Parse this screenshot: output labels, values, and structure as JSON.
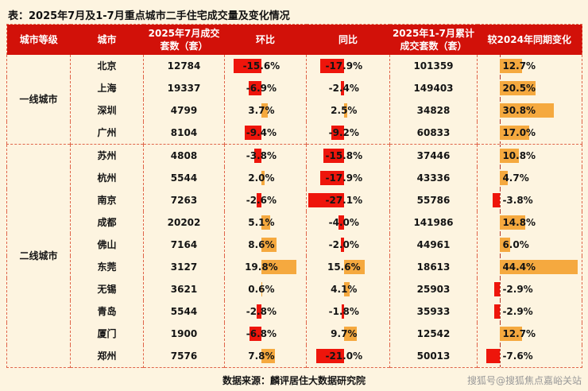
{
  "colors": {
    "page_bg": "#fdf4e0",
    "header_bg": "#d21109",
    "header_text": "#ffffff",
    "bar_negative": "#ee150b",
    "bar_positive": "#f5a93f",
    "grid": "#e0654a",
    "text": "#141414",
    "watermark": "#999999"
  },
  "chart_data": {
    "type": "table",
    "title": "表：2025年7月及1-7月重点城市二手住宅成交量及变化情况",
    "columns": [
      "城市等级",
      "城市",
      "2025年7月成交套数（套）",
      "环比",
      "同比",
      "2025年1-7月累计成交套数（套）",
      "较2024年同期变化"
    ],
    "tiers": [
      {
        "name": "一线城市",
        "rows": [
          {
            "city": "北京",
            "jul": "12784",
            "mom": "-15.6%",
            "yoy": "-17.9%",
            "cum": "101359",
            "chg": "12.7%"
          },
          {
            "city": "上海",
            "jul": "19337",
            "mom": "-6.9%",
            "yoy": "-2.4%",
            "cum": "149403",
            "chg": "20.5%"
          },
          {
            "city": "深圳",
            "jul": "4799",
            "mom": "3.7%",
            "yoy": "2.5%",
            "cum": "34828",
            "chg": "30.8%"
          },
          {
            "city": "广州",
            "jul": "8104",
            "mom": "-9.4%",
            "yoy": "-9.2%",
            "cum": "60833",
            "chg": "17.0%"
          }
        ]
      },
      {
        "name": "二线城市",
        "rows": [
          {
            "city": "苏州",
            "jul": "4808",
            "mom": "-3.8%",
            "yoy": "-15.8%",
            "cum": "37446",
            "chg": "10.8%"
          },
          {
            "city": "杭州",
            "jul": "5544",
            "mom": "2.0%",
            "yoy": "-17.9%",
            "cum": "43336",
            "chg": "4.7%"
          },
          {
            "city": "南京",
            "jul": "7263",
            "mom": "-2.6%",
            "yoy": "-27.1%",
            "cum": "55786",
            "chg": "-3.8%"
          },
          {
            "city": "成都",
            "jul": "20202",
            "mom": "5.1%",
            "yoy": "-4.0%",
            "cum": "141986",
            "chg": "14.8%"
          },
          {
            "city": "佛山",
            "jul": "7164",
            "mom": "8.6%",
            "yoy": "-2.0%",
            "cum": "44961",
            "chg": "6.0%"
          },
          {
            "city": "东莞",
            "jul": "3127",
            "mom": "19.8%",
            "yoy": "15.6%",
            "cum": "18613",
            "chg": "44.4%"
          },
          {
            "city": "无锡",
            "jul": "3621",
            "mom": "0.6%",
            "yoy": "4.1%",
            "cum": "25903",
            "chg": "-2.9%"
          },
          {
            "city": "青岛",
            "jul": "5544",
            "mom": "-2.8%",
            "yoy": "-1.8%",
            "cum": "35933",
            "chg": "-2.9%"
          },
          {
            "city": "厦门",
            "jul": "1900",
            "mom": "-6.8%",
            "yoy": "9.7%",
            "cum": "12542",
            "chg": "12.7%"
          },
          {
            "city": "郑州",
            "jul": "7576",
            "mom": "7.8%",
            "yoy": "-21.0%",
            "cum": "50013",
            "chg": "-7.6%"
          }
        ]
      }
    ],
    "bar_axes": {
      "mom": {
        "baseline": 0.45,
        "scale": 2.2
      },
      "yoy": {
        "baseline": 0.45,
        "scale": 1.6
      },
      "chg": {
        "baseline": 0.21,
        "scale": 1.7
      }
    },
    "source": "数据来源：麟评居住大数据研究院"
  },
  "footer": {
    "watermark": "搜狐号@搜狐焦点嘉峪关站"
  }
}
